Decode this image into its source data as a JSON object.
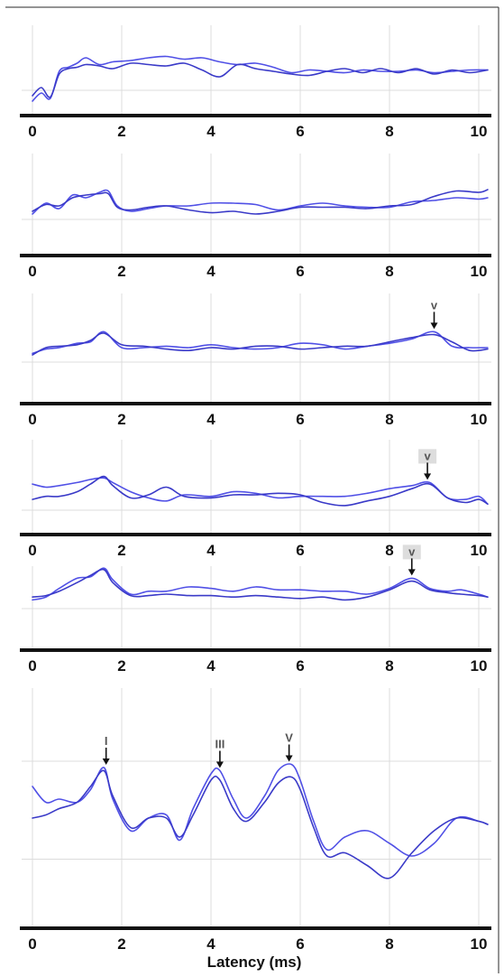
{
  "colors": {
    "trace": "#5050e6",
    "trace_dark": "#3a3ac8",
    "axis": "#111111",
    "grid": "#dcdcdc"
  },
  "chart_data": [
    {
      "type": "line",
      "xlim": [
        0,
        10.2
      ],
      "xticks": [
        "0",
        "2",
        "4",
        "6",
        "8",
        "10"
      ],
      "xlabel": "",
      "series": [
        {
          "x": [
            0,
            0.2,
            0.4,
            0.6,
            0.8,
            1.0,
            1.2,
            1.5,
            1.8,
            2.2,
            2.6,
            3.0,
            3.4,
            3.8,
            4.2,
            4.6,
            5.0,
            5.4,
            5.8,
            6.2,
            6.6,
            7.0,
            7.4,
            7.8,
            8.2,
            8.6,
            9.0,
            9.4,
            9.8,
            10.2
          ],
          "y": [
            -0.9,
            -0.6,
            -0.8,
            0.2,
            0.35,
            0.5,
            0.7,
            0.45,
            0.55,
            0.6,
            0.7,
            0.75,
            0.65,
            0.7,
            0.55,
            0.45,
            0.5,
            0.35,
            0.15,
            0.25,
            0.2,
            0.15,
            0.25,
            0.2,
            0.2,
            0.25,
            0.15,
            0.2,
            0.25,
            0.25
          ]
        },
        {
          "x": [
            0,
            0.2,
            0.4,
            0.6,
            0.8,
            1.0,
            1.2,
            1.5,
            1.8,
            2.2,
            2.6,
            3.0,
            3.4,
            3.8,
            4.2,
            4.6,
            5.0,
            5.4,
            5.8,
            6.2,
            6.6,
            7.0,
            7.4,
            7.8,
            8.2,
            8.6,
            9.0,
            9.4,
            9.8,
            10.2
          ],
          "y": [
            -0.7,
            -0.4,
            -0.75,
            0.1,
            0.3,
            0.35,
            0.45,
            0.4,
            0.3,
            0.5,
            0.45,
            0.4,
            0.5,
            0.25,
            0.0,
            0.45,
            0.3,
            0.2,
            0.1,
            0.05,
            0.2,
            0.3,
            0.15,
            0.3,
            0.15,
            0.3,
            0.1,
            0.25,
            0.15,
            0.25
          ]
        }
      ]
    },
    {
      "type": "line",
      "xlim": [
        0,
        10.2
      ],
      "xticks": [
        "0",
        "2",
        "4",
        "6",
        "8",
        "10"
      ],
      "xlabel": "",
      "series": [
        {
          "x": [
            0,
            0.3,
            0.6,
            0.9,
            1.2,
            1.5,
            1.7,
            1.9,
            2.2,
            2.6,
            3.0,
            3.5,
            4.0,
            4.5,
            5.0,
            5.5,
            6.0,
            6.5,
            7.0,
            7.5,
            8.0,
            8.5,
            9.0,
            9.5,
            10.0,
            10.2
          ],
          "y": [
            -0.3,
            0.1,
            -0.1,
            0.4,
            0.3,
            0.5,
            0.55,
            0.0,
            -0.2,
            -0.1,
            0.0,
            0.0,
            0.1,
            0.1,
            0.05,
            -0.15,
            0.0,
            0.1,
            0.0,
            -0.05,
            -0.05,
            0.15,
            0.2,
            0.3,
            0.25,
            0.3
          ]
        },
        {
          "x": [
            0,
            0.3,
            0.6,
            0.9,
            1.2,
            1.5,
            1.7,
            1.9,
            2.2,
            2.6,
            3.0,
            3.5,
            4.0,
            4.5,
            5.0,
            5.5,
            6.0,
            6.5,
            7.0,
            7.5,
            8.0,
            8.5,
            9.0,
            9.5,
            10.0,
            10.2
          ],
          "y": [
            -0.2,
            0.05,
            0.0,
            0.3,
            0.4,
            0.45,
            0.45,
            -0.05,
            -0.15,
            -0.05,
            0.0,
            -0.15,
            -0.25,
            -0.2,
            -0.3,
            -0.2,
            -0.05,
            -0.05,
            -0.05,
            -0.1,
            0.0,
            0.05,
            0.35,
            0.55,
            0.5,
            0.6
          ]
        }
      ]
    },
    {
      "type": "line",
      "xlim": [
        0,
        10.2
      ],
      "xticks": [
        "0",
        "2",
        "4",
        "6",
        "8",
        "10"
      ],
      "xlabel": "",
      "annotations": [
        {
          "label": "v",
          "x": 9.0,
          "boxed": false
        }
      ],
      "series": [
        {
          "x": [
            0,
            0.3,
            0.6,
            1.0,
            1.3,
            1.6,
            2.0,
            2.5,
            3.0,
            3.5,
            4.0,
            4.5,
            5.0,
            5.5,
            6.0,
            6.5,
            7.0,
            7.5,
            8.0,
            8.5,
            9.0,
            9.4,
            9.8,
            10.2
          ],
          "y": [
            -0.2,
            -0.05,
            0.0,
            0.15,
            0.2,
            0.55,
            0.0,
            0.0,
            0.05,
            0.0,
            0.1,
            0.0,
            -0.05,
            0.0,
            0.15,
            0.1,
            -0.05,
            0.05,
            0.15,
            0.3,
            0.55,
            0.05,
            0.0,
            0.0
          ]
        },
        {
          "x": [
            0,
            0.3,
            0.6,
            1.0,
            1.3,
            1.6,
            2.0,
            2.5,
            3.0,
            3.5,
            4.0,
            4.5,
            5.0,
            5.5,
            6.0,
            6.5,
            7.0,
            7.5,
            8.0,
            8.5,
            9.0,
            9.4,
            9.8,
            10.2
          ],
          "y": [
            -0.25,
            0.0,
            0.05,
            0.1,
            0.25,
            0.5,
            0.1,
            0.05,
            -0.05,
            -0.1,
            0.0,
            -0.05,
            0.05,
            0.05,
            -0.05,
            0.0,
            0.05,
            0.05,
            0.2,
            0.35,
            0.45,
            0.2,
            -0.1,
            -0.05
          ]
        }
      ]
    },
    {
      "type": "line",
      "xlim": [
        0,
        10.2
      ],
      "xticks": [
        "0",
        "2",
        "4",
        "6",
        "8",
        "10"
      ],
      "xlabel": "",
      "annotations": [
        {
          "label": "v",
          "x": 8.85,
          "boxed": true
        }
      ],
      "series": [
        {
          "x": [
            0,
            0.3,
            0.6,
            1.0,
            1.3,
            1.6,
            1.8,
            2.2,
            2.6,
            3.0,
            3.4,
            4.0,
            4.5,
            5.0,
            5.5,
            6.0,
            6.5,
            7.0,
            7.5,
            8.0,
            8.5,
            8.9,
            9.3,
            9.7,
            10.0,
            10.2
          ],
          "y": [
            0.35,
            0.25,
            0.3,
            0.4,
            0.5,
            0.55,
            0.4,
            0.1,
            -0.1,
            -0.2,
            0.0,
            -0.05,
            0.1,
            0.05,
            -0.1,
            -0.05,
            -0.05,
            -0.05,
            0.05,
            0.2,
            0.3,
            0.4,
            -0.1,
            -0.15,
            -0.05,
            -0.3
          ]
        },
        {
          "x": [
            0,
            0.3,
            0.6,
            1.0,
            1.3,
            1.6,
            1.8,
            2.2,
            2.6,
            3.0,
            3.4,
            4.0,
            4.5,
            5.0,
            5.5,
            6.0,
            6.5,
            7.0,
            7.5,
            8.0,
            8.5,
            8.9,
            9.3,
            9.7,
            10.0,
            10.2
          ],
          "y": [
            -0.15,
            -0.05,
            -0.05,
            0.1,
            0.35,
            0.6,
            0.3,
            -0.1,
            0.0,
            0.25,
            -0.05,
            -0.1,
            0.0,
            0.0,
            0.05,
            0.0,
            -0.25,
            -0.35,
            -0.2,
            -0.05,
            0.2,
            0.35,
            -0.1,
            -0.25,
            -0.15,
            -0.3
          ]
        }
      ]
    },
    {
      "type": "line",
      "xlim": [
        0,
        10.2
      ],
      "xticks": [
        "0",
        "2",
        "4",
        "6",
        "8",
        "10"
      ],
      "xlabel": "",
      "annotations": [
        {
          "label": "v",
          "x": 8.5,
          "boxed": true
        }
      ],
      "series": [
        {
          "x": [
            0,
            0.3,
            0.6,
            1.0,
            1.3,
            1.6,
            1.8,
            2.2,
            2.6,
            3.0,
            3.5,
            4.0,
            4.5,
            5.0,
            5.5,
            6.0,
            6.5,
            7.0,
            7.5,
            8.0,
            8.5,
            8.9,
            9.3,
            9.6,
            10.0,
            10.2
          ],
          "y": [
            -0.2,
            -0.1,
            0.2,
            0.55,
            0.6,
            0.9,
            0.5,
            0.0,
            0.1,
            0.1,
            0.25,
            0.2,
            0.1,
            0.25,
            0.15,
            0.15,
            0.1,
            0.1,
            0.0,
            0.2,
            0.55,
            0.2,
            0.1,
            0.15,
            0.0,
            -0.1
          ]
        },
        {
          "x": [
            0,
            0.3,
            0.6,
            1.0,
            1.3,
            1.6,
            1.8,
            2.2,
            2.6,
            3.0,
            3.5,
            4.0,
            4.5,
            5.0,
            5.5,
            6.0,
            6.5,
            7.0,
            7.5,
            8.0,
            8.5,
            8.9,
            9.3,
            9.6,
            10.0,
            10.2
          ],
          "y": [
            -0.1,
            -0.05,
            0.1,
            0.4,
            0.65,
            0.85,
            0.4,
            -0.05,
            -0.05,
            0.0,
            -0.05,
            -0.05,
            -0.1,
            -0.05,
            -0.1,
            -0.15,
            -0.1,
            -0.2,
            -0.1,
            0.15,
            0.45,
            0.15,
            0.05,
            0.0,
            -0.05,
            -0.1
          ]
        }
      ]
    },
    {
      "type": "line",
      "xlim": [
        0,
        10.2
      ],
      "xticks": [
        "0",
        "2",
        "4",
        "6",
        "8",
        "10"
      ],
      "xlabel": "Latency (ms)",
      "annotations": [
        {
          "label": "I",
          "x": 1.65,
          "boxed": false
        },
        {
          "label": "III",
          "x": 4.2,
          "boxed": false
        },
        {
          "label": "V",
          "x": 5.75,
          "boxed": false
        }
      ],
      "series": [
        {
          "x": [
            0,
            0.3,
            0.6,
            1.0,
            1.3,
            1.6,
            1.8,
            2.2,
            2.6,
            3.0,
            3.3,
            3.6,
            4.0,
            4.2,
            4.5,
            4.8,
            5.2,
            5.5,
            5.8,
            6.0,
            6.3,
            6.6,
            7.0,
            7.5,
            8.0,
            8.5,
            9.0,
            9.5,
            10.0,
            10.2
          ],
          "y": [
            0.2,
            -0.05,
            0.0,
            -0.05,
            0.15,
            0.5,
            0.0,
            -0.5,
            -0.3,
            -0.25,
            -0.65,
            -0.15,
            0.4,
            0.45,
            0.0,
            -0.3,
            0.05,
            0.45,
            0.55,
            0.3,
            -0.35,
            -0.8,
            -0.6,
            -0.5,
            -0.7,
            -0.9,
            -0.7,
            -0.3,
            -0.35,
            -0.4
          ]
        },
        {
          "x": [
            0,
            0.3,
            0.6,
            1.0,
            1.3,
            1.6,
            1.8,
            2.2,
            2.6,
            3.0,
            3.3,
            3.6,
            4.0,
            4.2,
            4.5,
            4.8,
            5.2,
            5.5,
            5.8,
            6.0,
            6.3,
            6.6,
            7.0,
            7.5,
            8.0,
            8.5,
            9.0,
            9.5,
            10.0,
            10.2
          ],
          "y": [
            -0.3,
            -0.25,
            -0.15,
            -0.05,
            0.2,
            0.45,
            0.05,
            -0.45,
            -0.3,
            -0.3,
            -0.6,
            -0.25,
            0.3,
            0.3,
            -0.15,
            -0.35,
            -0.05,
            0.25,
            0.35,
            0.15,
            -0.45,
            -0.9,
            -0.85,
            -1.05,
            -1.25,
            -0.85,
            -0.5,
            -0.3,
            -0.35,
            -0.4
          ]
        }
      ]
    }
  ]
}
